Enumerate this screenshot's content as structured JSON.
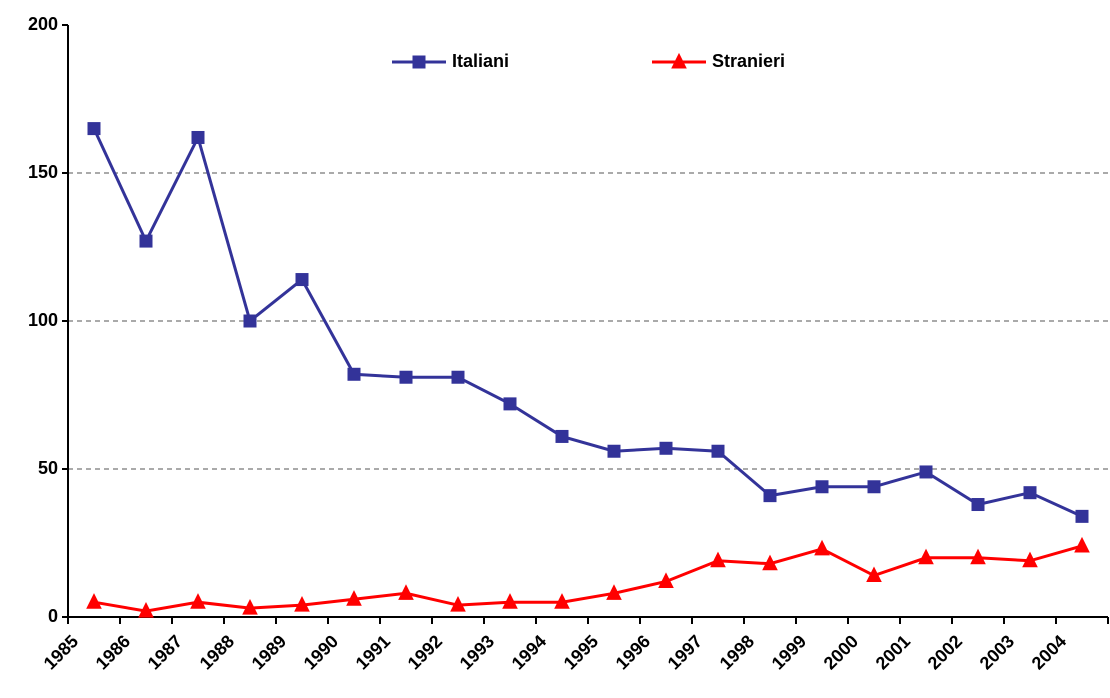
{
  "chart_data": {
    "type": "line",
    "categories": [
      "1985",
      "1986",
      "1987",
      "1988",
      "1989",
      "1990",
      "1991",
      "1992",
      "1993",
      "1994",
      "1995",
      "1996",
      "1997",
      "1998",
      "1999",
      "2000",
      "2001",
      "2002",
      "2003",
      "2004"
    ],
    "series": [
      {
        "name": "Italiani",
        "color": "#333399",
        "marker": "square",
        "values": [
          165,
          127,
          162,
          100,
          114,
          82,
          81,
          81,
          72,
          61,
          56,
          57,
          56,
          41,
          44,
          44,
          49,
          38,
          42,
          34
        ]
      },
      {
        "name": "Stranieri",
        "color": "#ff0000",
        "marker": "triangle",
        "values": [
          5,
          2,
          5,
          3,
          4,
          6,
          8,
          4,
          5,
          5,
          8,
          12,
          19,
          18,
          23,
          14,
          20,
          20,
          19,
          24
        ]
      }
    ],
    "ylim": [
      0,
      200
    ],
    "yticks": [
      0,
      50,
      100,
      150,
      200
    ],
    "grid": true,
    "legend": "top"
  }
}
